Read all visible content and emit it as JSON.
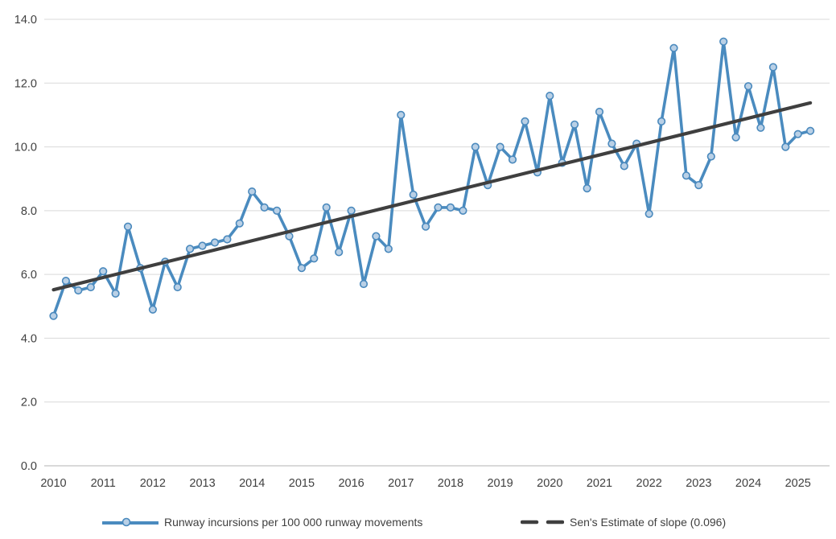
{
  "chart_data": {
    "type": "line",
    "title": "",
    "x_tick_labels": [
      "2010",
      "2011",
      "2012",
      "2013",
      "2014",
      "2015",
      "2016",
      "2017",
      "2018",
      "2019",
      "2020",
      "2021",
      "2022",
      "2023",
      "2024",
      "2025"
    ],
    "y_tick_labels": [
      "0.0",
      "2.0",
      "4.0",
      "6.0",
      "8.0",
      "10.0",
      "12.0",
      "14.0"
    ],
    "ylim": [
      0,
      14
    ],
    "grid": true,
    "points_per_year": 4,
    "series": [
      {
        "name": "Runway incursions per 100 000 runway movements",
        "values": [
          4.7,
          5.8,
          5.5,
          5.6,
          6.1,
          5.4,
          7.5,
          6.2,
          4.9,
          6.4,
          5.6,
          6.8,
          6.9,
          7.0,
          7.1,
          7.6,
          8.6,
          8.1,
          8.0,
          7.2,
          6.2,
          6.5,
          8.1,
          6.7,
          8.0,
          5.7,
          7.2,
          6.8,
          11.0,
          8.5,
          7.5,
          8.1,
          8.1,
          8.0,
          10.0,
          8.8,
          10.0,
          9.6,
          10.8,
          9.2,
          11.6,
          9.5,
          10.7,
          8.7,
          11.1,
          10.1,
          9.4,
          10.1,
          7.9,
          10.8,
          13.1,
          9.1,
          8.8,
          9.7,
          13.3,
          10.3,
          11.9,
          10.6,
          12.5,
          10.0,
          10.4,
          10.5
        ]
      },
      {
        "name": "Sen's Estimate of slope (0.096)",
        "slope_per_point": 0.096,
        "trend_start_value": 5.52,
        "trend_end_value": 11.38
      }
    ],
    "legend": [
      {
        "label": "Runway incursions per 100 000 runway movements",
        "swatch": "line-with-marker"
      },
      {
        "label": "Sen's Estimate of slope (0.096)",
        "swatch": "dashes"
      }
    ]
  },
  "colors": {
    "series_line": "#4a8bbf",
    "marker_fill": "#b9d0e6",
    "marker_stroke": "#4a89bd",
    "trend_line": "#3f3f3f",
    "gridline": "#d9d9d9",
    "axis_line": "#b3b3b3",
    "tick_text": "#404040"
  }
}
